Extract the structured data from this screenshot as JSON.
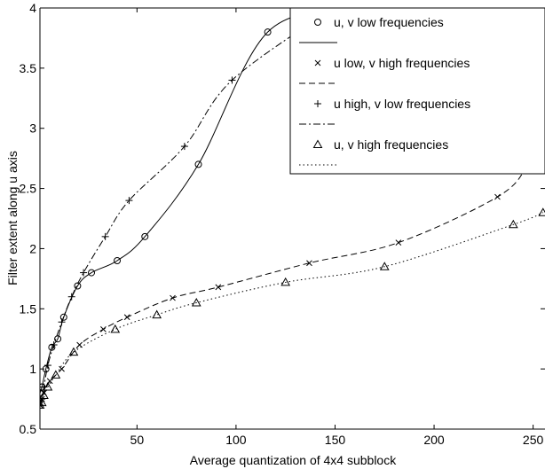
{
  "chart_data": {
    "type": "line",
    "xlabel": "Average quantization of 4x4 subblock",
    "ylabel": "Filter extent along u axis",
    "xlim": [
      1,
      256
    ],
    "ylim": [
      0.5,
      4
    ],
    "xticks": [
      50,
      100,
      150,
      200,
      250
    ],
    "yticks": [
      0.5,
      1,
      1.5,
      2,
      2.5,
      3,
      3.5,
      4
    ],
    "grid": false,
    "legend_position": "top-right",
    "series": [
      {
        "name": "u, v low frequencies",
        "marker": "circle",
        "line_style": "solid",
        "x": [
          1,
          2,
          4,
          7,
          10,
          13,
          20,
          27,
          40,
          54,
          81,
          116,
          160
        ],
        "y": [
          0.8,
          0.85,
          1.0,
          1.18,
          1.25,
          1.43,
          1.69,
          1.8,
          1.9,
          2.1,
          2.7,
          3.8,
          4.0
        ]
      },
      {
        "name": "u low, v high frequencies",
        "marker": "x",
        "line_style": "dashed",
        "x": [
          1,
          2,
          3,
          6,
          12,
          21,
          33,
          45,
          68,
          91,
          137,
          182,
          232,
          247,
          254
        ],
        "y": [
          0.7,
          0.75,
          0.8,
          0.9,
          1.0,
          1.2,
          1.33,
          1.43,
          1.59,
          1.68,
          1.88,
          2.05,
          2.43,
          2.69,
          2.96
        ]
      },
      {
        "name": "u high, v low frequencies",
        "marker": "plus",
        "line_style": "dashdot",
        "x": [
          1,
          2,
          3,
          5,
          8,
          12,
          17,
          23,
          34,
          46,
          74,
          98,
          149
        ],
        "y": [
          0.7,
          0.75,
          0.85,
          1.03,
          1.2,
          1.39,
          1.6,
          1.8,
          2.1,
          2.4,
          2.85,
          3.4,
          4.0
        ]
      },
      {
        "name": "u, v high frequencies",
        "marker": "triangle",
        "line_style": "dotted",
        "x": [
          1,
          2,
          3,
          5,
          9,
          18,
          39,
          60,
          80,
          125,
          175,
          240,
          255
        ],
        "y": [
          0.7,
          0.72,
          0.78,
          0.85,
          0.95,
          1.14,
          1.33,
          1.45,
          1.55,
          1.72,
          1.85,
          2.2,
          2.3
        ]
      }
    ]
  }
}
